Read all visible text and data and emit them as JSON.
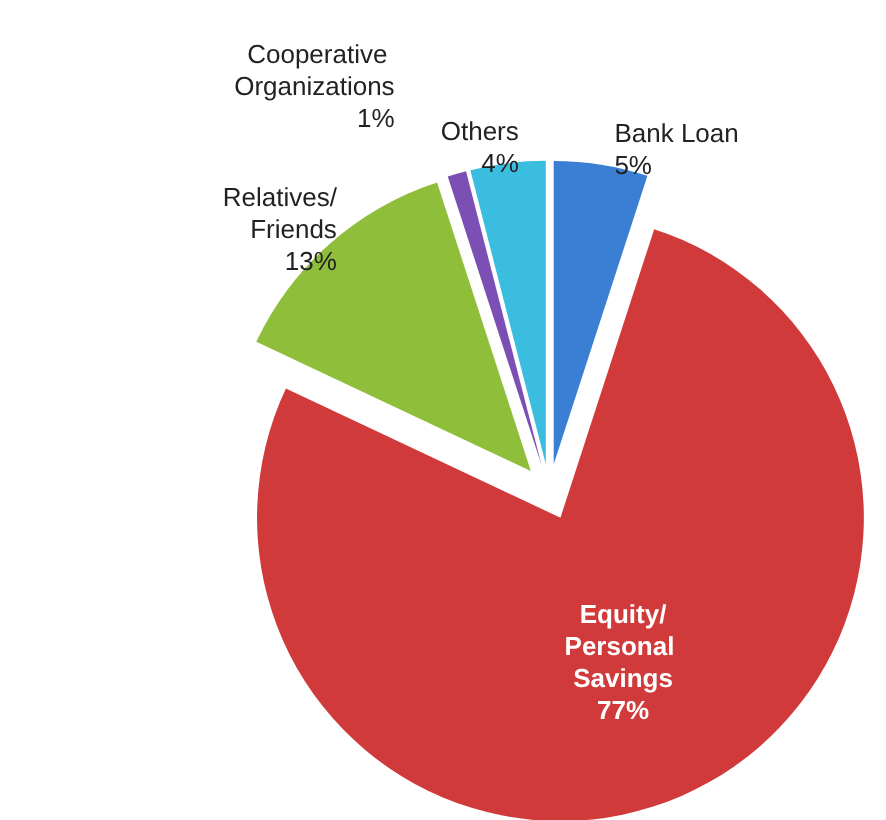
{
  "chart_data": {
    "type": "pie",
    "categories": [
      "Bank Loan",
      "Equity/Personal Savings",
      "Relatives/Friends",
      "Cooperative Organizations",
      "Others"
    ],
    "values": [
      5,
      77,
      13,
      1,
      4
    ],
    "colors": [
      "#3b7fd4",
      "#d13a3a",
      "#8fbe3b",
      "#7b4fb3",
      "#3bbde0"
    ],
    "value_labels": [
      "5%",
      "77%",
      "13%",
      "1%",
      "4%"
    ],
    "legend": false
  }
}
